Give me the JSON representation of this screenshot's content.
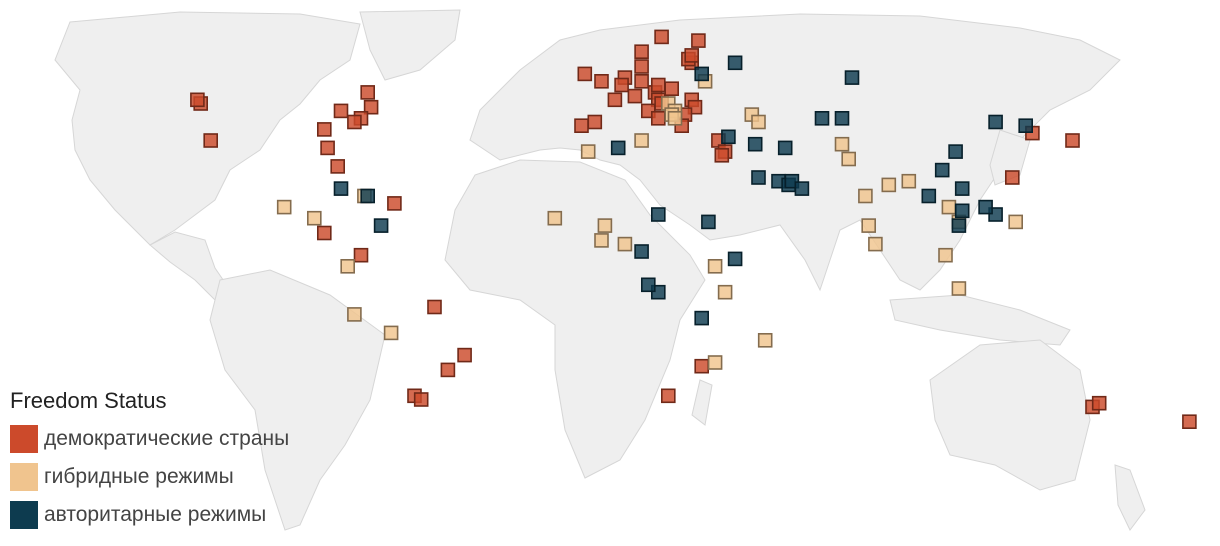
{
  "legend": {
    "title": "Freedom Status",
    "items": [
      {
        "key": "democratic",
        "label": "демократические страны",
        "color": "#cc4a2b"
      },
      {
        "key": "hybrid",
        "label": "гибридные режимы",
        "color": "#f0c48e"
      },
      {
        "key": "authoritarian",
        "label": "авторитарные режимы",
        "color": "#0d3b4f"
      }
    ]
  },
  "markers": {
    "democratic": [
      [
        45,
        -122
      ],
      [
        46,
        -123
      ],
      [
        48,
        -72
      ],
      [
        44,
        -71
      ],
      [
        38,
        -85
      ],
      [
        35,
        -119
      ],
      [
        43,
        -80
      ],
      [
        41,
        -74
      ],
      [
        33,
        -84
      ],
      [
        40,
        -76
      ],
      [
        28,
        -81
      ],
      [
        10,
        -85
      ],
      [
        18,
        -64
      ],
      [
        4,
        -74
      ],
      [
        -10,
        -52
      ],
      [
        -23,
        -43
      ],
      [
        -27,
        -48
      ],
      [
        -34,
        -58
      ],
      [
        -35,
        -56
      ],
      [
        51,
        -2
      ],
      [
        53,
        -7
      ],
      [
        40,
        -4
      ],
      [
        39,
        -8
      ],
      [
        46,
        2
      ],
      [
        52,
        5
      ],
      [
        50,
        4
      ],
      [
        51,
        10
      ],
      [
        47,
        8
      ],
      [
        48,
        14
      ],
      [
        50,
        15
      ],
      [
        49,
        19
      ],
      [
        46,
        15
      ],
      [
        45,
        16
      ],
      [
        43,
        12
      ],
      [
        41,
        15
      ],
      [
        46,
        25
      ],
      [
        44,
        26
      ],
      [
        42,
        23
      ],
      [
        39,
        22
      ],
      [
        56,
        25
      ],
      [
        57,
        24
      ],
      [
        58,
        25
      ],
      [
        59,
        10
      ],
      [
        63,
        16
      ],
      [
        62,
        27
      ],
      [
        55,
        10
      ],
      [
        35,
        33
      ],
      [
        32,
        35
      ],
      [
        31,
        34
      ],
      [
        -26,
        28
      ],
      [
        -34,
        18
      ],
      [
        -37,
        145
      ],
      [
        -36,
        147
      ],
      [
        -41,
        174
      ],
      [
        37,
        127
      ],
      [
        25,
        121
      ],
      [
        35,
        139
      ]
    ],
    "hybrid": [
      [
        17,
        -97
      ],
      [
        14,
        -88
      ],
      [
        20,
        -73
      ],
      [
        1,
        -78
      ],
      [
        -12,
        -76
      ],
      [
        -17,
        -65
      ],
      [
        32,
        -6
      ],
      [
        35,
        10
      ],
      [
        14,
        -16
      ],
      [
        8,
        -2
      ],
      [
        7,
        5
      ],
      [
        12,
        -1
      ],
      [
        45,
        18
      ],
      [
        43,
        20
      ],
      [
        42,
        19
      ],
      [
        41,
        20
      ],
      [
        51,
        29
      ],
      [
        42,
        43
      ],
      [
        40,
        45
      ],
      [
        1,
        32
      ],
      [
        -6,
        35
      ],
      [
        -19,
        47
      ],
      [
        -25,
        32
      ],
      [
        34,
        70
      ],
      [
        30,
        72
      ],
      [
        24,
        90
      ],
      [
        23,
        84
      ],
      [
        20,
        77
      ],
      [
        12,
        78
      ],
      [
        7,
        80
      ],
      [
        17,
        102
      ],
      [
        13,
        105
      ],
      [
        4,
        101
      ],
      [
        -5,
        105
      ],
      [
        13,
        122
      ]
    ],
    "authoritarian": [
      [
        22,
        -80
      ],
      [
        12,
        -68
      ],
      [
        20,
        -72
      ],
      [
        33,
        3
      ],
      [
        15,
        15
      ],
      [
        13,
        30
      ],
      [
        -6,
        15
      ],
      [
        -4,
        12
      ],
      [
        -13,
        28
      ],
      [
        5,
        10
      ],
      [
        3,
        38
      ],
      [
        56,
        38
      ],
      [
        53,
        28
      ],
      [
        36,
        36
      ],
      [
        34,
        44
      ],
      [
        25,
        45
      ],
      [
        24,
        51
      ],
      [
        23,
        54
      ],
      [
        24,
        55
      ],
      [
        22,
        58
      ],
      [
        52,
        73
      ],
      [
        41,
        64
      ],
      [
        41,
        70
      ],
      [
        33,
        53
      ],
      [
        27,
        100
      ],
      [
        40,
        116
      ],
      [
        32,
        104
      ],
      [
        22,
        106
      ],
      [
        16,
        106
      ],
      [
        12,
        105
      ],
      [
        20,
        96
      ],
      [
        15,
        116
      ],
      [
        17,
        113
      ],
      [
        39,
        125
      ]
    ]
  }
}
